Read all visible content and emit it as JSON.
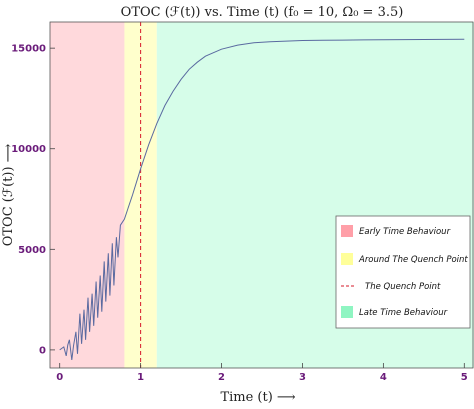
{
  "chart_data": {
    "type": "line",
    "title": "OTOC (ℱ(t)) vs. Time (t) (f₀ = 10, Ω₀ = 3.5)",
    "xlabel": "Time (t) ⟶",
    "ylabel": "OTOC (ℱ(t)) ⟶",
    "xlim": [
      -0.12,
      5.12
    ],
    "ylim": [
      -900,
      16300
    ],
    "x_ticks": [
      "0",
      "1",
      "2",
      "3",
      "4",
      "5"
    ],
    "y_ticks": [
      "0",
      "5000",
      "10000",
      "15000"
    ],
    "x_tick_values": [
      0,
      1,
      2,
      3,
      4,
      5
    ],
    "y_tick_values": [
      0,
      5000,
      10000,
      15000
    ],
    "regions": [
      {
        "label": "Early Time Behaviour",
        "x_range": [
          -0.12,
          0.8
        ],
        "color": "#ffd9dc"
      },
      {
        "label": "Around The Quench Point",
        "x_range": [
          0.8,
          1.2
        ],
        "color": "#ffffcc"
      },
      {
        "label": "Late Time Behaviour",
        "x_range": [
          1.2,
          5.12
        ],
        "color": "#d6fde9"
      }
    ],
    "vline": {
      "label": "The Quench Point",
      "x": 1.0,
      "color": "#d6182a"
    },
    "series": [
      {
        "color": "#5a6aa0",
        "x": [
          0,
          0.05,
          0.08,
          0.1,
          0.12,
          0.15,
          0.17,
          0.2,
          0.22,
          0.25,
          0.27,
          0.3,
          0.32,
          0.35,
          0.37,
          0.4,
          0.42,
          0.45,
          0.47,
          0.5,
          0.52,
          0.55,
          0.57,
          0.6,
          0.62,
          0.65,
          0.67,
          0.7,
          0.72,
          0.75,
          0.8,
          0.9,
          1.0,
          1.1,
          1.2,
          1.3,
          1.4,
          1.5,
          1.6,
          1.7,
          1.8,
          2.0,
          2.2,
          2.4,
          2.6,
          2.8,
          3.0,
          3.25,
          3.5,
          3.75,
          4.0,
          4.25,
          4.5,
          4.75,
          5.0
        ],
        "y": [
          0,
          150,
          -300,
          250,
          500,
          -500,
          200,
          900,
          -200,
          1800,
          300,
          2000,
          500,
          2600,
          900,
          2800,
          1200,
          3400,
          1600,
          3700,
          1900,
          4400,
          2400,
          4800,
          2700,
          5300,
          3200,
          5600,
          4600,
          6200,
          6500,
          7700,
          9000,
          10200,
          11250,
          12150,
          12850,
          13450,
          13950,
          14300,
          14600,
          14950,
          15150,
          15270,
          15320,
          15350,
          15380,
          15390,
          15400,
          15410,
          15420,
          15425,
          15430,
          15435,
          15440
        ]
      }
    ],
    "legend": {
      "placement": "right",
      "entries": [
        "Early Time Behaviour",
        "Around The Quench Point",
        "The Quench Point",
        "Late Time Behaviour"
      ]
    },
    "grid": false
  }
}
